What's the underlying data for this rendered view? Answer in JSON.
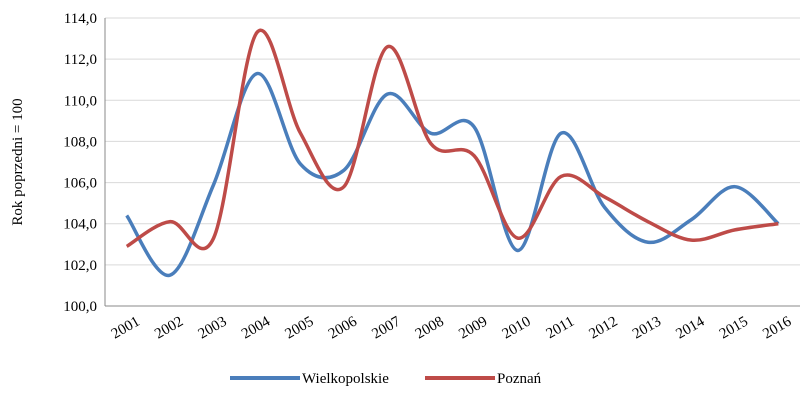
{
  "chart_data": {
    "type": "line",
    "y_label": "Rok poprzedni = 100",
    "categories": [
      "2001",
      "2002",
      "2003",
      "2004",
      "2005",
      "2006",
      "2007",
      "2008",
      "2009",
      "2010",
      "2011",
      "2012",
      "2013",
      "2014",
      "2015",
      "2016"
    ],
    "series": [
      {
        "name": "Wielkopolskie",
        "color": "#4a7ebb",
        "values": [
          104.4,
          101.5,
          105.9,
          111.3,
          106.9,
          106.6,
          110.3,
          108.4,
          108.7,
          102.7,
          108.4,
          104.8,
          103.1,
          104.2,
          105.8,
          104.0
        ]
      },
      {
        "name": "Poznań",
        "color": "#be4b48",
        "values": [
          102.9,
          104.1,
          103.3,
          113.3,
          108.4,
          105.8,
          112.6,
          107.9,
          107.3,
          103.3,
          106.3,
          105.3,
          104.1,
          103.2,
          103.7,
          104.0
        ]
      }
    ],
    "ylim": [
      100,
      114
    ],
    "yticks": [
      {
        "value": 100,
        "label": "100,0"
      },
      {
        "value": 102,
        "label": "102,0"
      },
      {
        "value": 104,
        "label": "104,0"
      },
      {
        "value": 106,
        "label": "106,0"
      },
      {
        "value": 108,
        "label": "108,0"
      },
      {
        "value": 110,
        "label": "110,0"
      },
      {
        "value": 112,
        "label": "112,0"
      },
      {
        "value": 114,
        "label": "114,0"
      }
    ],
    "grid": true,
    "smooth": true,
    "legend": "bottom"
  }
}
